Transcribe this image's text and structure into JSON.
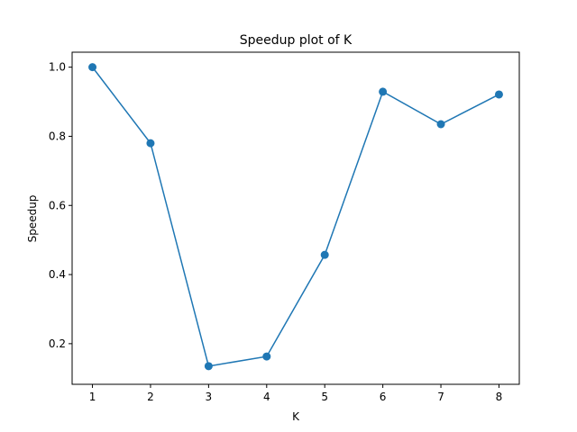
{
  "chart_data": {
    "type": "line",
    "title": "Speedup plot of K",
    "xlabel": "K",
    "ylabel": "Speedup",
    "x": [
      1,
      2,
      3,
      4,
      5,
      6,
      7,
      8
    ],
    "series": [
      {
        "values": [
          1.0,
          0.78,
          0.135,
          0.163,
          0.457,
          0.929,
          0.835,
          0.921
        ],
        "color": "#1f77b4",
        "marker": "circle"
      }
    ],
    "xlim": [
      0.65,
      8.35
    ],
    "ylim": [
      0.0825,
      1.0433
    ],
    "xticks": [
      "1",
      "2",
      "3",
      "4",
      "5",
      "6",
      "7",
      "8"
    ],
    "yticks": [
      "0.2",
      "0.4",
      "0.6",
      "0.8",
      "1.0"
    ],
    "grid": false,
    "legend": "none"
  }
}
